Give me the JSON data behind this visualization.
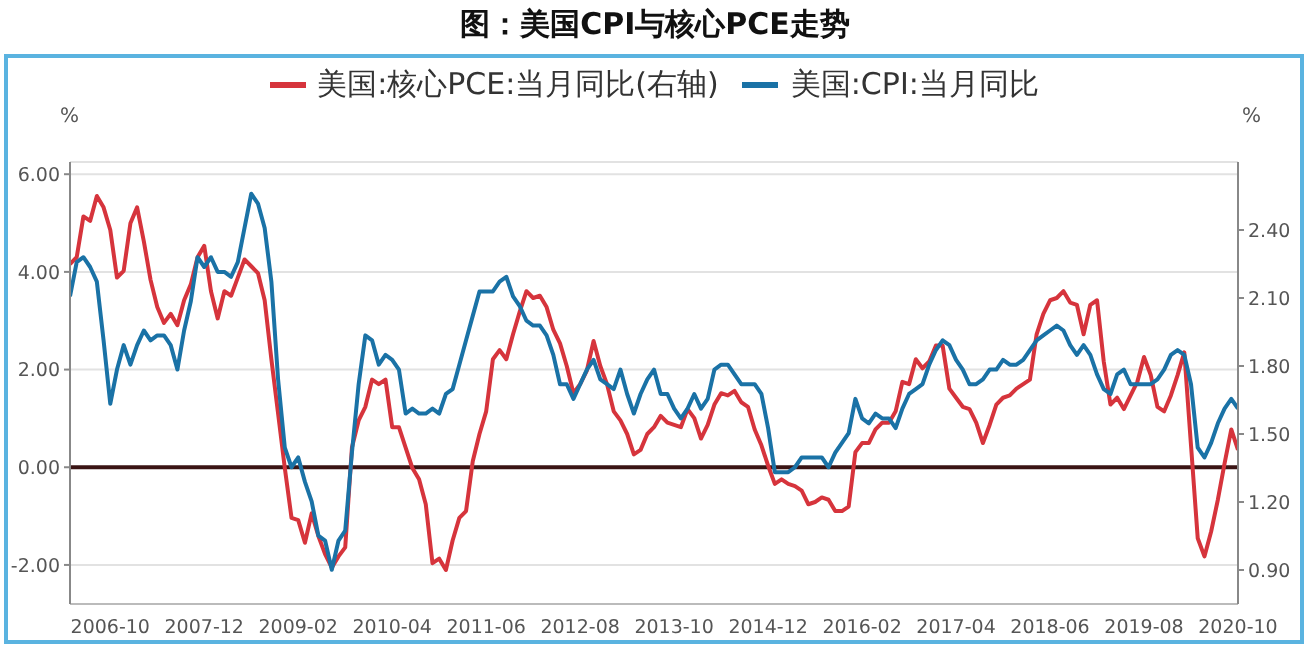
{
  "chart_data": {
    "type": "line",
    "title": "图：美国CPI与核心PCE走势",
    "ylabel": "%",
    "y2label": "%",
    "x": [
      "2006-04",
      "2006-05",
      "2006-06",
      "2006-07",
      "2006-08",
      "2006-09",
      "2006-10",
      "2006-11",
      "2006-12",
      "2007-01",
      "2007-02",
      "2007-03",
      "2007-04",
      "2007-05",
      "2007-06",
      "2007-07",
      "2007-08",
      "2007-09",
      "2007-10",
      "2007-11",
      "2007-12",
      "2008-01",
      "2008-02",
      "2008-03",
      "2008-04",
      "2008-05",
      "2008-06",
      "2008-07",
      "2008-08",
      "2008-09",
      "2008-10",
      "2008-11",
      "2008-12",
      "2009-01",
      "2009-02",
      "2009-03",
      "2009-04",
      "2009-05",
      "2009-06",
      "2009-07",
      "2009-08",
      "2009-09",
      "2009-10",
      "2009-11",
      "2009-12",
      "2010-01",
      "2010-02",
      "2010-03",
      "2010-04",
      "2010-05",
      "2010-06",
      "2010-07",
      "2010-08",
      "2010-09",
      "2010-10",
      "2010-11",
      "2010-12",
      "2011-01",
      "2011-02",
      "2011-03",
      "2011-04",
      "2011-05",
      "2011-06",
      "2011-07",
      "2011-08",
      "2011-09",
      "2011-10",
      "2011-11",
      "2011-12",
      "2012-01",
      "2012-02",
      "2012-03",
      "2012-04",
      "2012-05",
      "2012-06",
      "2012-07",
      "2012-08",
      "2012-09",
      "2012-10",
      "2012-11",
      "2012-12",
      "2013-01",
      "2013-02",
      "2013-03",
      "2013-04",
      "2013-05",
      "2013-06",
      "2013-07",
      "2013-08",
      "2013-09",
      "2013-10",
      "2013-11",
      "2013-12",
      "2014-01",
      "2014-02",
      "2014-03",
      "2014-04",
      "2014-05",
      "2014-06",
      "2014-07",
      "2014-08",
      "2014-09",
      "2014-10",
      "2014-11",
      "2014-12",
      "2015-01",
      "2015-02",
      "2015-03",
      "2015-04",
      "2015-05",
      "2015-06",
      "2015-07",
      "2015-08",
      "2015-09",
      "2015-10",
      "2015-11",
      "2015-12",
      "2016-01",
      "2016-02",
      "2016-03",
      "2016-04",
      "2016-05",
      "2016-06",
      "2016-07",
      "2016-08",
      "2016-09",
      "2016-10",
      "2016-11",
      "2016-12",
      "2017-01",
      "2017-02",
      "2017-03",
      "2017-04",
      "2017-05",
      "2017-06",
      "2017-07",
      "2017-08",
      "2017-09",
      "2017-10",
      "2017-11",
      "2017-12",
      "2018-01",
      "2018-02",
      "2018-03",
      "2018-04",
      "2018-05",
      "2018-06",
      "2018-07",
      "2018-08",
      "2018-09",
      "2018-10",
      "2018-11",
      "2018-12",
      "2019-01",
      "2019-02",
      "2019-03",
      "2019-04",
      "2019-05",
      "2019-06",
      "2019-07",
      "2019-08",
      "2019-09",
      "2019-10",
      "2019-11",
      "2019-12",
      "2020-01",
      "2020-02",
      "2020-03",
      "2020-04",
      "2020-05",
      "2020-06",
      "2020-07",
      "2020-08",
      "2020-09",
      "2020-10"
    ],
    "series": [
      {
        "name": "美国:核心PCE:当月同比(右轴)",
        "color": "#d6343c",
        "axis": "y2",
        "values": [
          2.25,
          2.28,
          2.46,
          2.44,
          2.55,
          2.5,
          2.4,
          2.19,
          2.22,
          2.43,
          2.5,
          2.35,
          2.18,
          2.06,
          1.99,
          2.03,
          1.98,
          2.09,
          2.16,
          2.28,
          2.33,
          2.13,
          2.01,
          2.13,
          2.11,
          2.19,
          2.27,
          2.24,
          2.21,
          2.09,
          1.83,
          1.59,
          1.35,
          1.13,
          1.12,
          1.02,
          1.15,
          1.05,
          0.97,
          0.91,
          0.96,
          1.0,
          1.44,
          1.56,
          1.62,
          1.74,
          1.72,
          1.74,
          1.53,
          1.53,
          1.44,
          1.35,
          1.3,
          1.19,
          0.93,
          0.95,
          0.9,
          1.03,
          1.13,
          1.16,
          1.38,
          1.5,
          1.6,
          1.83,
          1.87,
          1.83,
          1.94,
          2.04,
          2.13,
          2.1,
          2.11,
          2.06,
          1.96,
          1.9,
          1.8,
          1.68,
          1.72,
          1.78,
          1.91,
          1.8,
          1.72,
          1.6,
          1.56,
          1.5,
          1.41,
          1.43,
          1.5,
          1.53,
          1.58,
          1.55,
          1.54,
          1.53,
          1.61,
          1.57,
          1.48,
          1.54,
          1.63,
          1.68,
          1.67,
          1.69,
          1.64,
          1.62,
          1.52,
          1.45,
          1.36,
          1.28,
          1.3,
          1.28,
          1.27,
          1.25,
          1.19,
          1.2,
          1.22,
          1.21,
          1.16,
          1.16,
          1.18,
          1.42,
          1.46,
          1.46,
          1.52,
          1.55,
          1.55,
          1.6,
          1.73,
          1.72,
          1.83,
          1.79,
          1.82,
          1.89,
          1.89,
          1.7,
          1.66,
          1.62,
          1.61,
          1.55,
          1.46,
          1.54,
          1.63,
          1.66,
          1.67,
          1.7,
          1.72,
          1.74,
          1.94,
          2.03,
          2.09,
          2.1,
          2.13,
          2.08,
          2.07,
          1.94,
          2.07,
          2.09,
          1.82,
          1.63,
          1.66,
          1.61,
          1.67,
          1.73,
          1.84,
          1.76,
          1.62,
          1.6,
          1.67,
          1.76,
          1.86,
          1.45,
          1.04,
          0.96,
          1.07,
          1.21,
          1.37,
          1.52,
          1.43
        ]
      },
      {
        "name": "美国:CPI:当月同比",
        "color": "#1a72a6",
        "values": [
          3.5,
          4.2,
          4.3,
          4.1,
          3.8,
          2.6,
          1.3,
          2.0,
          2.5,
          2.1,
          2.5,
          2.8,
          2.6,
          2.7,
          2.7,
          2.5,
          2.0,
          2.8,
          3.4,
          4.3,
          4.1,
          4.3,
          4.0,
          4.0,
          3.9,
          4.2,
          4.9,
          5.6,
          5.4,
          4.9,
          3.8,
          1.8,
          0.4,
          0.0,
          0.2,
          -0.3,
          -0.7,
          -1.4,
          -1.5,
          -2.1,
          -1.5,
          -1.3,
          0.3,
          1.7,
          2.7,
          2.6,
          2.1,
          2.3,
          2.2,
          2.0,
          1.1,
          1.2,
          1.1,
          1.1,
          1.2,
          1.1,
          1.5,
          1.6,
          2.1,
          2.6,
          3.1,
          3.6,
          3.6,
          3.6,
          3.8,
          3.9,
          3.5,
          3.3,
          3.0,
          2.9,
          2.9,
          2.7,
          2.3,
          1.7,
          1.7,
          1.4,
          1.7,
          2.0,
          2.2,
          1.8,
          1.7,
          1.6,
          2.0,
          1.5,
          1.1,
          1.5,
          1.8,
          2.0,
          1.5,
          1.5,
          1.2,
          1.0,
          1.2,
          1.5,
          1.2,
          1.4,
          2.0,
          2.1,
          2.1,
          1.9,
          1.7,
          1.7,
          1.7,
          1.5,
          0.8,
          -0.1,
          -0.1,
          -0.1,
          0.0,
          0.2,
          0.2,
          0.2,
          0.2,
          0.0,
          0.3,
          0.5,
          0.7,
          1.4,
          1.0,
          0.9,
          1.1,
          1.0,
          1.0,
          0.8,
          1.2,
          1.5,
          1.6,
          1.7,
          2.1,
          2.4,
          2.6,
          2.5,
          2.2,
          2.0,
          1.7,
          1.7,
          1.8,
          2.0,
          2.0,
          2.2,
          2.1,
          2.1,
          2.2,
          2.4,
          2.6,
          2.7,
          2.8,
          2.9,
          2.8,
          2.5,
          2.3,
          2.5,
          2.3,
          1.9,
          1.6,
          1.5,
          1.9,
          2.0,
          1.7,
          1.7,
          1.7,
          1.7,
          1.8,
          2.0,
          2.3,
          2.4,
          2.3,
          1.7,
          0.4,
          0.2,
          0.5,
          0.9,
          1.2,
          1.4,
          1.2
        ]
      }
    ],
    "xlim": [
      "2006-04",
      "2020-10"
    ],
    "xticks": [
      "2006-10",
      "2007-12",
      "2009-02",
      "2010-04",
      "2011-06",
      "2012-08",
      "2013-10",
      "2014-12",
      "2016-02",
      "2017-04",
      "2018-06",
      "2019-08",
      "2020-10"
    ],
    "ylim": [
      -2.8,
      6.25
    ],
    "yticks": [
      {
        "value": -2,
        "label": "-2.00"
      },
      {
        "value": 0,
        "label": "0.00"
      },
      {
        "value": 2,
        "label": "2.00"
      },
      {
        "value": 4,
        "label": "4.00"
      },
      {
        "value": 6,
        "label": "6.00"
      }
    ],
    "y2lim": [
      0.75,
      2.7
    ],
    "y2ticks": [
      {
        "value": 0.9,
        "label": "0.90"
      },
      {
        "value": 1.2,
        "label": "1.20"
      },
      {
        "value": 1.5,
        "label": "1.50"
      },
      {
        "value": 1.8,
        "label": "1.80"
      },
      {
        "value": 2.1,
        "label": "2.10"
      },
      {
        "value": 2.4,
        "label": "2.40"
      }
    ],
    "ref_lines": [
      {
        "axis": "y",
        "value": 0,
        "color": "#3a1414"
      }
    ],
    "grid": "y",
    "legend": "top"
  }
}
